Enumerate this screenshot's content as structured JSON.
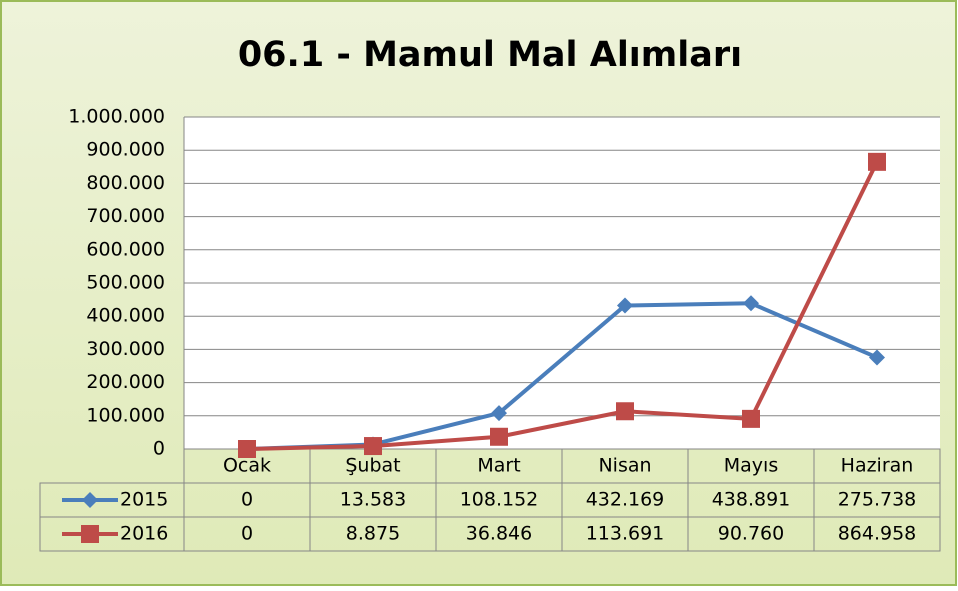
{
  "chart_data": {
    "type": "line",
    "title": "06.1 - Mamul Mal Alımları",
    "categories": [
      "Ocak",
      "Şubat",
      "Mart",
      "Nisan",
      "Mayıs",
      "Haziran"
    ],
    "series": [
      {
        "name": "2015",
        "color": "#4a7ebb",
        "marker": "diamond",
        "values": [
          0,
          13583,
          108152,
          432169,
          438891,
          275738
        ],
        "value_labels": [
          "0",
          "13.583",
          "108.152",
          "432.169",
          "438.891",
          "275.738"
        ]
      },
      {
        "name": "2016",
        "color": "#be4b48",
        "marker": "square",
        "values": [
          0,
          8875,
          36846,
          113691,
          90760,
          864958
        ],
        "value_labels": [
          "0",
          "8.875",
          "36.846",
          "113.691",
          "90.760",
          "864.958"
        ]
      }
    ],
    "ylim": [
      0,
      1000000
    ],
    "yticks": [
      0,
      {
        "value": 100000,
        "label": "100.000"
      },
      {
        "value": 200000,
        "label": "200.000"
      },
      {
        "value": 300000,
        "label": "300.000"
      },
      {
        "value": 400000,
        "label": "400.000"
      },
      {
        "value": 500000,
        "label": "500.000"
      },
      {
        "value": 600000,
        "label": "600.000"
      },
      {
        "value": 700000,
        "label": "700.000"
      },
      {
        "value": 800000,
        "label": "800.000"
      },
      {
        "value": 900000,
        "label": "900.000"
      },
      {
        "value": 1000000,
        "label": "1.000.000"
      }
    ],
    "grid": true
  }
}
